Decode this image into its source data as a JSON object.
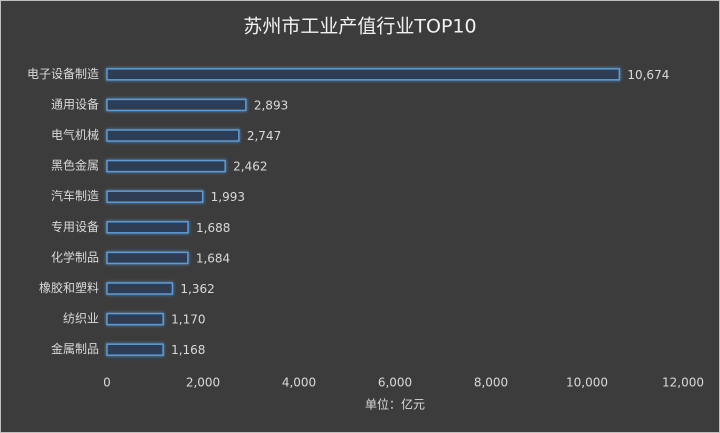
{
  "chart_data": {
    "type": "bar",
    "orientation": "horizontal",
    "title": "苏州市工业产值行业TOP10",
    "x_label": "单位：亿元",
    "categories": [
      "电子设备制造",
      "通用设备",
      "电气机械",
      "黑色金属",
      "汽车制造",
      "专用设备",
      "化学制品",
      "橡胶和塑料",
      "纺织业",
      "金属制品"
    ],
    "values": [
      10674,
      2893,
      2747,
      2462,
      1993,
      1688,
      1684,
      1362,
      1170,
      1168
    ],
    "value_labels": [
      "10,674",
      "2,893",
      "2,747",
      "2,462",
      "1,993",
      "1,688",
      "1,684",
      "1,362",
      "1,170",
      "1,168"
    ],
    "color": "#5b9bd5",
    "xlim": [
      0,
      12000
    ],
    "xticks": [
      0,
      {
        "value": 2000,
        "label": "2,000"
      },
      {
        "value": 4000,
        "label": "4,000"
      },
      {
        "value": 6000,
        "label": "6,000"
      },
      {
        "value": 8000,
        "label": "8,000"
      },
      {
        "value": 10000,
        "label": "10,000"
      },
      {
        "value": 12000,
        "label": "12,000"
      }
    ]
  }
}
